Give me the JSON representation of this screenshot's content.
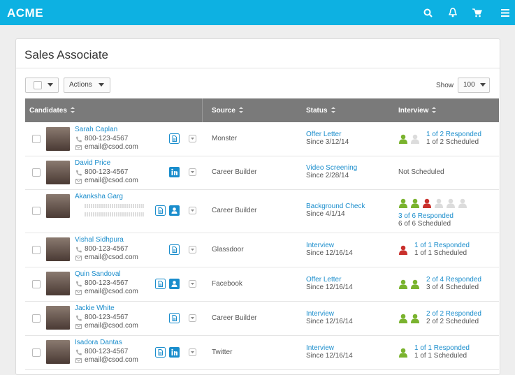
{
  "header": {
    "logo": "ACME"
  },
  "card": {
    "title": "Sales Associate"
  },
  "toolbar": {
    "actions": "Actions",
    "show_label": "Show",
    "show_value": "100"
  },
  "table": {
    "columns": [
      "Candidates",
      "Source",
      "Status",
      "Interview"
    ],
    "rows": [
      {
        "name": "Sarah Caplan",
        "phone": "800-123-4567",
        "email": "email@csod.com",
        "source": "Monster",
        "status": "Offer Letter",
        "since": "Since 3/12/14",
        "interview": [
          "1 of 2 Responded",
          "1 of 2 Scheduled"
        ]
      },
      {
        "name": "David Price",
        "phone": "800-123-4567",
        "email": "email@csod.com",
        "source": "Career Builder",
        "status": "Video Screening",
        "since": "Since 2/28/14",
        "interview": [
          "Not Scheduled"
        ]
      },
      {
        "name": "Akanksha Garg",
        "phone": null,
        "email": null,
        "source": "Career Builder",
        "status": "Background Check",
        "since": "Since 4/1/14",
        "interview": [
          "3 of 6 Responded",
          "6 of 6 Scheduled"
        ]
      },
      {
        "name": "Vishal Sidhpura",
        "phone": "800-123-4567",
        "email": "email@csod.com",
        "source": "Glassdoor",
        "status": "Interview",
        "since": "Since 12/16/14",
        "interview": [
          "1 of 1 Responded",
          "1 of 1 Scheduled"
        ]
      },
      {
        "name": "Quin Sandoval",
        "phone": "800-123-4567",
        "email": "email@csod.com",
        "source": "Facebook",
        "status": "Offer Letter",
        "since": "Since 12/16/14",
        "interview": [
          "2 of 4 Responded",
          "3 of 4 Scheduled"
        ]
      },
      {
        "name": "Jackie White",
        "phone": "800-123-4567",
        "email": "email@csod.com",
        "source": "Career Builder",
        "status": "Interview",
        "since": "Since 12/16/14",
        "interview": [
          "2 of 2 Responded",
          "2 of 2 Scheduled"
        ]
      },
      {
        "name": "Isadora Dantas",
        "phone": "800-123-4567",
        "email": "email@csod.com",
        "source": "Twitter",
        "status": "Interview",
        "since": "Since 12/16/14",
        "interview": [
          "1 of 1 Responded",
          "1 of 1 Scheduled"
        ]
      }
    ]
  }
}
